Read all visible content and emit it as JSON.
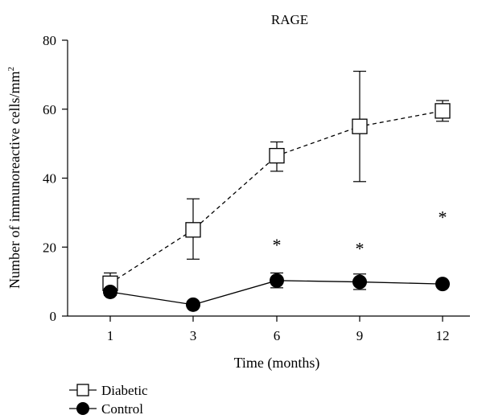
{
  "chart_data": {
    "type": "line",
    "title": "RAGE",
    "xlabel": "Time (months)",
    "ylabel": "Number of immunoreactive cells/mm",
    "ylabel_superscript": "2",
    "categories": [
      "1",
      "3",
      "6",
      "9",
      "12"
    ],
    "ylim": [
      0,
      80
    ],
    "yticks": [
      "0",
      "20",
      "40",
      "60",
      "80"
    ],
    "series": [
      {
        "name": "Diabetic",
        "marker": "open-square",
        "line": "dashed",
        "values": [
          9.5,
          25,
          46.5,
          55,
          59.5
        ],
        "err_high": [
          12.5,
          34,
          50.5,
          71,
          62.5
        ],
        "err_low": [
          7,
          16.5,
          42,
          39,
          56.5
        ]
      },
      {
        "name": "Control",
        "marker": "filled-circle",
        "line": "solid",
        "values": [
          7,
          3.3,
          10.3,
          9.9,
          9.3
        ],
        "err_high": [
          8,
          3.8,
          12.5,
          12.2,
          10
        ],
        "err_low": [
          6,
          2.8,
          8.2,
          7.7,
          8.6
        ]
      }
    ],
    "annotations": [
      {
        "text": "*",
        "category": "6",
        "y": 21
      },
      {
        "text": "*",
        "category": "9",
        "y": 20
      },
      {
        "text": "*",
        "category": "12",
        "y": 29
      }
    ],
    "grid": false,
    "legend_position": "bottom-left"
  }
}
